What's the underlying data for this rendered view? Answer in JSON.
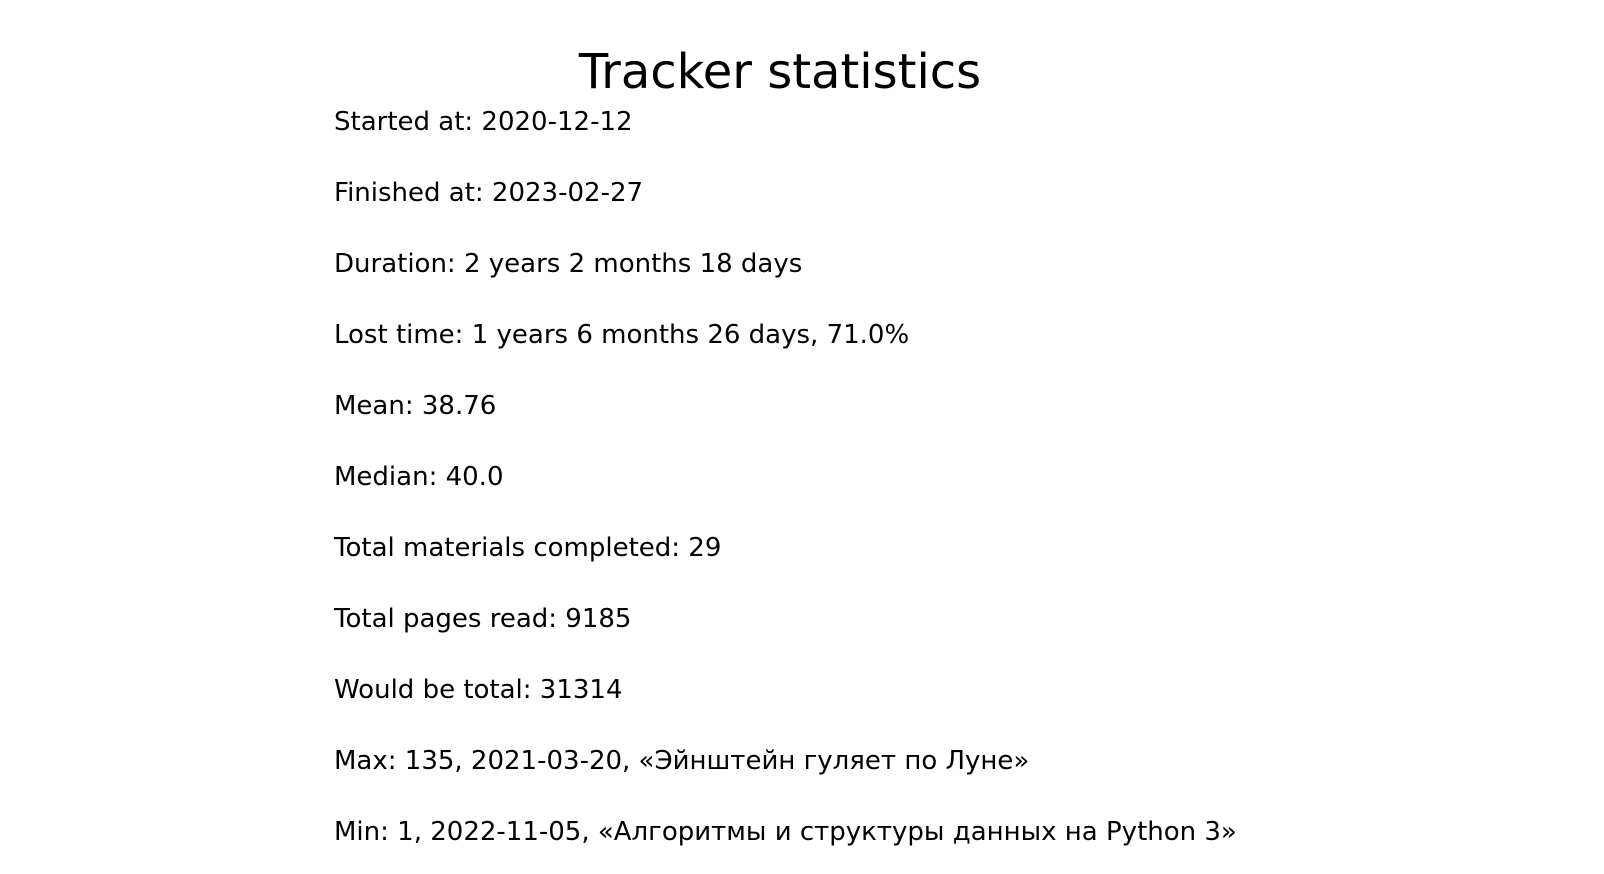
{
  "page": {
    "title": "Tracker statistics"
  },
  "stats": [
    "Started at: 2020-12-12",
    "Finished at: 2023-02-27",
    "Duration: 2 years 2 months 18 days",
    "Lost time: 1 years 6 months 26 days, 71.0%",
    "Mean: 38.76",
    "Median: 40.0",
    "Total materials completed: 29",
    "Total pages read: 9185",
    "Would be total: 31314",
    "Max: 135, 2021-03-20, «Эйнштейн гуляет по Луне»",
    "Min: 1, 2022-11-05, «Алгоритмы и структуры данных на Python 3»"
  ],
  "colors": {
    "background": "#ffffff",
    "text": "#000000"
  }
}
